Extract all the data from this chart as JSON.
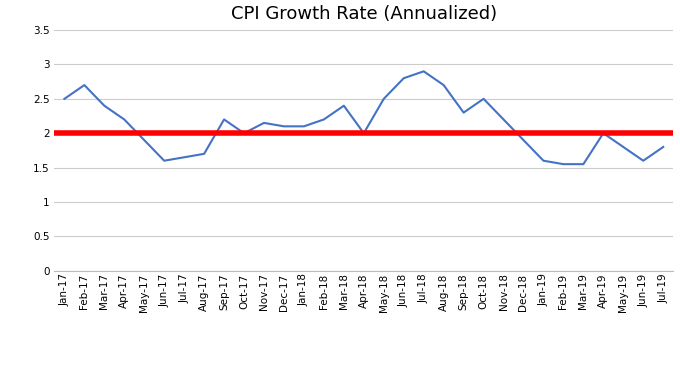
{
  "title": "CPI Growth Rate (Annualized)",
  "labels": [
    "Jan-17",
    "Feb-17",
    "Mar-17",
    "Apr-17",
    "May-17",
    "Jun-17",
    "Jul-17",
    "Aug-17",
    "Sep-17",
    "Oct-17",
    "Nov-17",
    "Dec-17",
    "Jan-18",
    "Feb-18",
    "Mar-18",
    "Apr-18",
    "May-18",
    "Jun-18",
    "Jul-18",
    "Aug-18",
    "Sep-18",
    "Oct-18",
    "Nov-18",
    "Dec-18",
    "Jan-19",
    "Feb-19",
    "Mar-19",
    "Apr-19",
    "May-19",
    "Jun-19",
    "Jul-19"
  ],
  "values": [
    2.5,
    2.7,
    2.4,
    2.2,
    1.9,
    1.6,
    1.65,
    1.7,
    2.2,
    2.0,
    2.15,
    2.1,
    2.1,
    2.2,
    2.4,
    2.0,
    2.5,
    2.8,
    2.9,
    2.7,
    2.3,
    2.5,
    2.2,
    1.9,
    1.6,
    1.55,
    1.55,
    2.0,
    1.8,
    1.6,
    1.8
  ],
  "reference_value": 2.0,
  "line_color": "#4472C4",
  "reference_color": "#FF0000",
  "reference_linewidth": 4.0,
  "line_linewidth": 1.5,
  "ylim": [
    0,
    3.5
  ],
  "yticks": [
    0,
    0.5,
    1,
    1.5,
    2,
    2.5,
    3,
    3.5
  ],
  "title_fontsize": 13,
  "tick_fontsize": 7.5,
  "background_color": "#ffffff",
  "grid_color": "#cccccc"
}
